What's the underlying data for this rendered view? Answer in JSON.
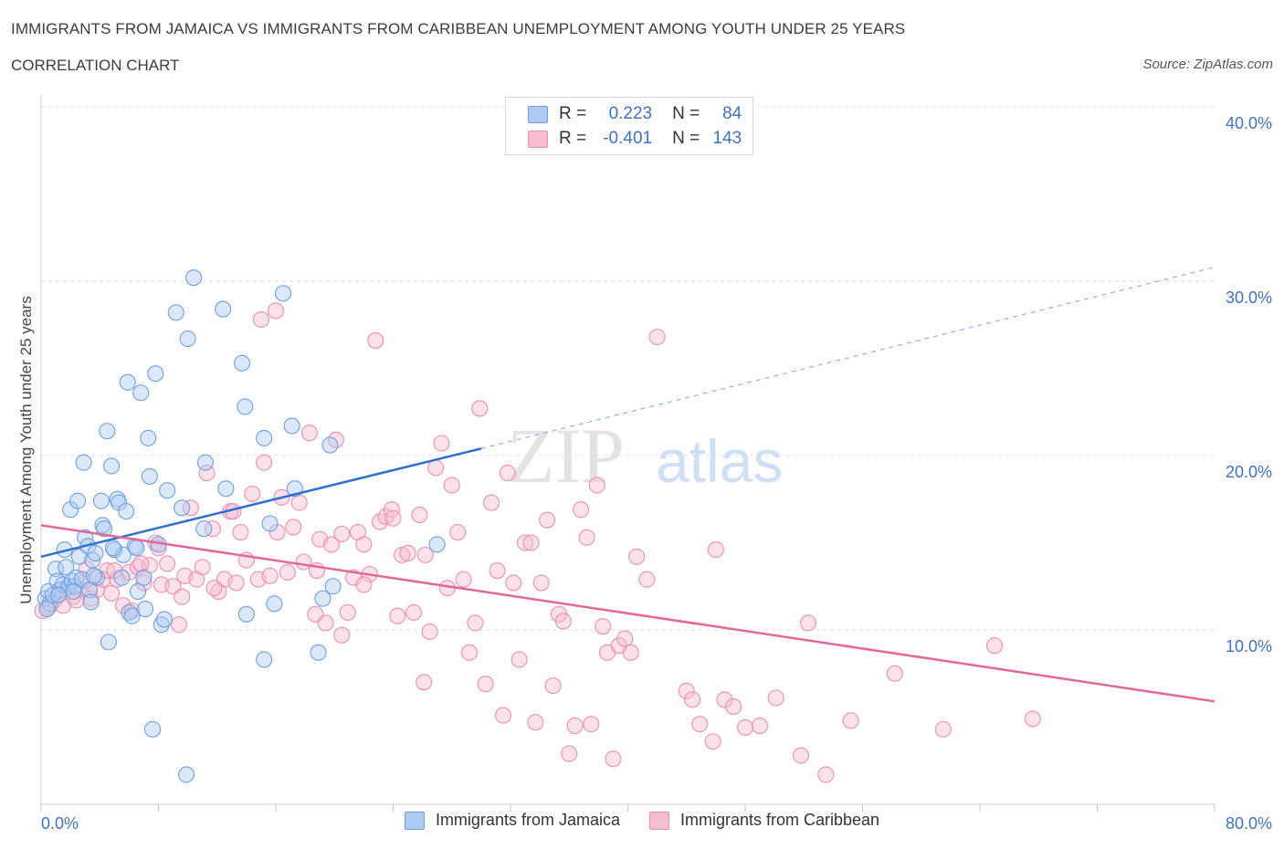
{
  "header": {
    "title": "IMMIGRANTS FROM JAMAICA VS IMMIGRANTS FROM CARIBBEAN UNEMPLOYMENT AMONG YOUTH UNDER 25 YEARS",
    "subtitle": "CORRELATION CHART",
    "source": "Source: ZipAtlas.com"
  },
  "legend": {
    "rows": [
      {
        "r_label": "R =",
        "r_value": "0.223",
        "n_label": "N =",
        "n_value": "84"
      },
      {
        "r_label": "R =",
        "r_value": "-0.401",
        "n_label": "N =",
        "n_value": "143"
      }
    ]
  },
  "watermark": {
    "zip": "ZIP",
    "atlas": "atlas"
  },
  "colors": {
    "jamaica_fill": "#aecbf3",
    "jamaica_stroke": "#6f9fe0",
    "jamaica_line": "#2f6fcf",
    "caribbean_fill": "#f6bcd0",
    "caribbean_stroke": "#ec8fb0",
    "caribbean_line": "#e2679a",
    "tick_label": "#3e72c4",
    "grid": "#dedede"
  },
  "chart_data": {
    "type": "scatter",
    "title": "IMMIGRANTS FROM JAMAICA VS IMMIGRANTS FROM CARIBBEAN UNEMPLOYMENT AMONG YOUTH UNDER 25 YEARS",
    "xlabel": "",
    "ylabel": "Unemployment Among Youth under 25 years",
    "xlim": [
      0,
      80
    ],
    "ylim": [
      0,
      40
    ],
    "x_tick_labels": [
      "0.0%",
      "80.0%"
    ],
    "y_ticks": [
      10,
      20,
      30,
      40
    ],
    "y_tick_labels": [
      "10.0%",
      "20.0%",
      "30.0%",
      "40.0%"
    ],
    "grid": true,
    "legend_position": "top-center",
    "series": [
      {
        "name": "Immigrants from Jamaica",
        "trend": {
          "x": [
            0,
            30
          ],
          "y": [
            14.2,
            20.4
          ],
          "dashed_extension_to": [
            80,
            30.8
          ]
        },
        "points": [
          [
            0.3,
            11.8
          ],
          [
            0.5,
            12.2
          ],
          [
            0.6,
            11.5
          ],
          [
            0.8,
            12.0
          ],
          [
            1.0,
            13.5
          ],
          [
            1.1,
            12.8
          ],
          [
            1.3,
            12.3
          ],
          [
            1.5,
            12.6
          ],
          [
            1.6,
            14.6
          ],
          [
            1.7,
            13.6
          ],
          [
            1.9,
            12.5
          ],
          [
            2.0,
            16.9
          ],
          [
            2.1,
            12.8
          ],
          [
            2.3,
            12.5
          ],
          [
            2.4,
            13.0
          ],
          [
            2.5,
            17.4
          ],
          [
            2.6,
            14.2
          ],
          [
            2.8,
            12.9
          ],
          [
            2.9,
            19.6
          ],
          [
            3.0,
            15.3
          ],
          [
            3.2,
            14.8
          ],
          [
            3.3,
            12.3
          ],
          [
            3.4,
            11.6
          ],
          [
            3.5,
            14.0
          ],
          [
            3.7,
            14.4
          ],
          [
            3.8,
            13.0
          ],
          [
            4.1,
            17.4
          ],
          [
            4.2,
            16.0
          ],
          [
            4.3,
            15.8
          ],
          [
            4.5,
            21.4
          ],
          [
            4.6,
            9.3
          ],
          [
            4.8,
            19.4
          ],
          [
            5.0,
            14.6
          ],
          [
            5.2,
            17.5
          ],
          [
            5.3,
            17.3
          ],
          [
            5.5,
            13.0
          ],
          [
            5.6,
            14.3
          ],
          [
            5.8,
            16.8
          ],
          [
            5.9,
            24.2
          ],
          [
            6.0,
            11.0
          ],
          [
            6.2,
            10.8
          ],
          [
            6.4,
            14.8
          ],
          [
            6.6,
            12.2
          ],
          [
            6.8,
            23.6
          ],
          [
            7.0,
            13.0
          ],
          [
            7.1,
            11.2
          ],
          [
            7.3,
            21.0
          ],
          [
            7.4,
            18.8
          ],
          [
            7.6,
            4.3
          ],
          [
            7.8,
            24.7
          ],
          [
            8.0,
            14.9
          ],
          [
            8.2,
            10.3
          ],
          [
            8.4,
            10.6
          ],
          [
            8.6,
            18.0
          ],
          [
            9.2,
            28.2
          ],
          [
            9.6,
            17.0
          ],
          [
            9.9,
            1.7
          ],
          [
            10.0,
            26.7
          ],
          [
            10.4,
            30.2
          ],
          [
            11.1,
            15.8
          ],
          [
            11.2,
            19.6
          ],
          [
            12.4,
            28.4
          ],
          [
            12.6,
            18.1
          ],
          [
            13.7,
            25.3
          ],
          [
            13.9,
            22.8
          ],
          [
            14.0,
            10.9
          ],
          [
            15.2,
            21.0
          ],
          [
            15.2,
            8.3
          ],
          [
            15.6,
            16.1
          ],
          [
            15.9,
            11.5
          ],
          [
            16.5,
            29.3
          ],
          [
            17.1,
            21.7
          ],
          [
            17.3,
            18.1
          ],
          [
            18.9,
            8.7
          ],
          [
            19.2,
            11.8
          ],
          [
            19.7,
            20.6
          ],
          [
            19.9,
            12.5
          ],
          [
            27.0,
            14.9
          ],
          [
            0.4,
            11.2
          ],
          [
            1.2,
            12.0
          ],
          [
            2.2,
            12.2
          ],
          [
            3.6,
            13.1
          ],
          [
            4.9,
            14.7
          ],
          [
            6.5,
            14.7
          ]
        ]
      },
      {
        "name": "Immigrants from Caribbean",
        "trend": {
          "x": [
            0,
            80
          ],
          "y": [
            16.0,
            5.9
          ]
        },
        "points": [
          [
            0.1,
            11.1
          ],
          [
            0.5,
            11.3
          ],
          [
            0.9,
            11.7
          ],
          [
            1.2,
            12.1
          ],
          [
            1.5,
            11.4
          ],
          [
            1.8,
            12.4
          ],
          [
            2.2,
            11.9
          ],
          [
            2.6,
            12.3
          ],
          [
            3.0,
            12.8
          ],
          [
            3.4,
            11.8
          ],
          [
            3.8,
            12.3
          ],
          [
            4.2,
            12.9
          ],
          [
            4.5,
            13.4
          ],
          [
            4.8,
            12.1
          ],
          [
            5.2,
            12.9
          ],
          [
            5.6,
            11.4
          ],
          [
            6.0,
            13.3
          ],
          [
            6.2,
            11.1
          ],
          [
            6.6,
            13.6
          ],
          [
            7.0,
            12.7
          ],
          [
            7.4,
            13.7
          ],
          [
            7.8,
            15.0
          ],
          [
            8.2,
            12.6
          ],
          [
            8.6,
            13.8
          ],
          [
            9.0,
            12.5
          ],
          [
            9.4,
            10.3
          ],
          [
            9.8,
            13.1
          ],
          [
            10.2,
            17.0
          ],
          [
            10.6,
            12.9
          ],
          [
            11.0,
            13.6
          ],
          [
            11.3,
            19.0
          ],
          [
            11.7,
            15.8
          ],
          [
            12.1,
            12.2
          ],
          [
            12.5,
            12.9
          ],
          [
            12.9,
            16.8
          ],
          [
            13.3,
            12.7
          ],
          [
            13.6,
            15.6
          ],
          [
            14.0,
            14.0
          ],
          [
            14.4,
            17.8
          ],
          [
            14.8,
            12.9
          ],
          [
            15.2,
            19.6
          ],
          [
            15.6,
            13.1
          ],
          [
            16.0,
            28.3
          ],
          [
            16.4,
            17.6
          ],
          [
            16.8,
            13.3
          ],
          [
            17.2,
            15.9
          ],
          [
            17.6,
            17.3
          ],
          [
            17.9,
            13.9
          ],
          [
            18.3,
            21.3
          ],
          [
            18.7,
            10.9
          ],
          [
            19.0,
            15.2
          ],
          [
            19.4,
            10.4
          ],
          [
            19.8,
            14.9
          ],
          [
            20.1,
            20.9
          ],
          [
            20.5,
            9.7
          ],
          [
            20.9,
            11.0
          ],
          [
            21.3,
            13.0
          ],
          [
            21.6,
            15.6
          ],
          [
            22.0,
            14.9
          ],
          [
            22.4,
            13.2
          ],
          [
            22.8,
            26.6
          ],
          [
            23.1,
            16.2
          ],
          [
            23.5,
            16.5
          ],
          [
            23.9,
            16.9
          ],
          [
            24.3,
            10.8
          ],
          [
            24.6,
            14.3
          ],
          [
            25.0,
            14.4
          ],
          [
            25.4,
            11.0
          ],
          [
            25.8,
            16.6
          ],
          [
            26.1,
            7.0
          ],
          [
            26.5,
            9.9
          ],
          [
            26.9,
            19.3
          ],
          [
            27.3,
            20.7
          ],
          [
            27.7,
            12.4
          ],
          [
            28.0,
            18.3
          ],
          [
            28.4,
            15.6
          ],
          [
            28.8,
            12.9
          ],
          [
            29.2,
            8.7
          ],
          [
            29.6,
            10.4
          ],
          [
            29.9,
            22.7
          ],
          [
            30.3,
            6.9
          ],
          [
            30.7,
            17.3
          ],
          [
            31.1,
            13.4
          ],
          [
            31.5,
            5.1
          ],
          [
            31.8,
            19.0
          ],
          [
            32.2,
            12.7
          ],
          [
            32.6,
            8.3
          ],
          [
            33.0,
            15.0
          ],
          [
            33.4,
            15.0
          ],
          [
            33.7,
            4.7
          ],
          [
            34.1,
            12.7
          ],
          [
            34.5,
            16.3
          ],
          [
            34.9,
            6.8
          ],
          [
            35.3,
            10.9
          ],
          [
            35.6,
            10.5
          ],
          [
            36.0,
            2.9
          ],
          [
            36.4,
            4.5
          ],
          [
            36.8,
            16.9
          ],
          [
            37.2,
            15.3
          ],
          [
            37.5,
            4.6
          ],
          [
            37.9,
            18.3
          ],
          [
            38.3,
            10.2
          ],
          [
            38.6,
            8.7
          ],
          [
            39.0,
            2.6
          ],
          [
            39.4,
            9.1
          ],
          [
            39.8,
            9.5
          ],
          [
            40.2,
            8.7
          ],
          [
            40.6,
            14.2
          ],
          [
            41.3,
            12.9
          ],
          [
            42.0,
            26.8
          ],
          [
            44.0,
            6.5
          ],
          [
            44.4,
            6.0
          ],
          [
            46.0,
            14.6
          ],
          [
            46.6,
            6.0
          ],
          [
            47.2,
            5.6
          ],
          [
            48.0,
            4.4
          ],
          [
            49.0,
            4.5
          ],
          [
            50.1,
            6.1
          ],
          [
            51.8,
            2.8
          ],
          [
            52.3,
            10.4
          ],
          [
            53.5,
            1.7
          ],
          [
            55.2,
            4.8
          ],
          [
            58.2,
            7.5
          ],
          [
            61.5,
            4.3
          ],
          [
            65.0,
            9.1
          ],
          [
            67.6,
            4.9
          ],
          [
            45.8,
            3.6
          ],
          [
            44.9,
            4.6
          ],
          [
            22.0,
            12.6
          ],
          [
            15.0,
            27.8
          ],
          [
            2.4,
            11.7
          ],
          [
            3.1,
            13.5
          ],
          [
            5.0,
            13.4
          ],
          [
            6.8,
            13.8
          ],
          [
            8.0,
            14.7
          ],
          [
            9.6,
            11.9
          ],
          [
            11.8,
            12.4
          ],
          [
            13.1,
            16.8
          ],
          [
            16.1,
            15.6
          ],
          [
            18.8,
            13.4
          ],
          [
            20.5,
            15.5
          ],
          [
            24.0,
            16.4
          ],
          [
            26.2,
            14.3
          ]
        ]
      }
    ]
  },
  "bottom_legend": [
    "Immigrants from Jamaica",
    "Immigrants from Caribbean"
  ]
}
